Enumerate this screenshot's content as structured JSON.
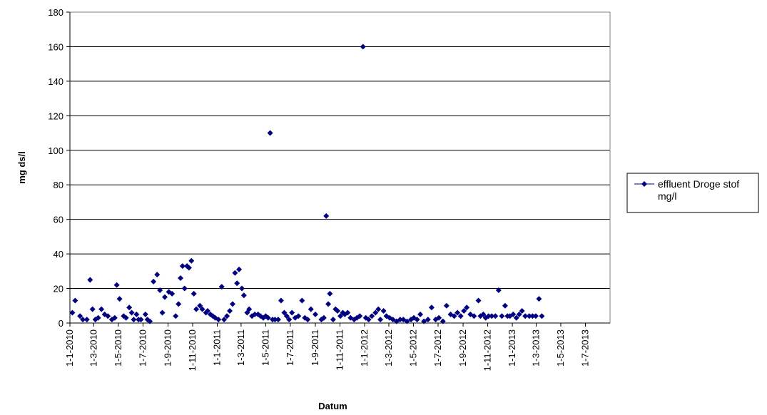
{
  "chart_data": {
    "type": "scatter",
    "xlabel": "Datum",
    "ylabel": "mg ds/l",
    "ylim": [
      0,
      180
    ],
    "y_ticks": [
      "0",
      "20",
      "40",
      "60",
      "80",
      "100",
      "120",
      "140",
      "160",
      "180"
    ],
    "xlim": [
      "2010-01-01",
      "2013-08-31"
    ],
    "x_ticks": [
      {
        "date": "2010-01-01",
        "label": "1-1-2010"
      },
      {
        "date": "2010-03-01",
        "label": "1-3-2010"
      },
      {
        "date": "2010-05-01",
        "label": "1-5-2010"
      },
      {
        "date": "2010-07-01",
        "label": "1-7-2010"
      },
      {
        "date": "2010-09-01",
        "label": "1-9-2010"
      },
      {
        "date": "2010-11-01",
        "label": "1-11-2010"
      },
      {
        "date": "2011-01-01",
        "label": "1-1-2011"
      },
      {
        "date": "2011-03-01",
        "label": "1-3-2011"
      },
      {
        "date": "2011-05-01",
        "label": "1-5-2011"
      },
      {
        "date": "2011-07-01",
        "label": "1-7-2011"
      },
      {
        "date": "2011-09-01",
        "label": "1-9-2011"
      },
      {
        "date": "2011-11-01",
        "label": "1-11-2011"
      },
      {
        "date": "2012-01-01",
        "label": "1-1-2012"
      },
      {
        "date": "2012-03-01",
        "label": "1-3-2012"
      },
      {
        "date": "2012-05-01",
        "label": "1-5-2012"
      },
      {
        "date": "2012-07-01",
        "label": "1-7-2012"
      },
      {
        "date": "2012-09-01",
        "label": "1-9-2012"
      },
      {
        "date": "2012-11-01",
        "label": "1-11-2012"
      },
      {
        "date": "2013-01-01",
        "label": "1-1-2013"
      },
      {
        "date": "2013-03-01",
        "label": "1-3-2013"
      },
      {
        "date": "2013-05-01",
        "label": "1-5-2013"
      },
      {
        "date": "2013-07-01",
        "label": "1-7-2013"
      }
    ],
    "grid": "horizontal",
    "legend_position": "right",
    "series": [
      {
        "name": "effluent Droge stof mg/l",
        "color": "#000080",
        "marker": "diamond",
        "points": [
          {
            "x": "2010-01-07",
            "y": 6
          },
          {
            "x": "2010-01-14",
            "y": 13
          },
          {
            "x": "2010-01-26",
            "y": 4
          },
          {
            "x": "2010-02-02",
            "y": 2
          },
          {
            "x": "2010-02-12",
            "y": 2
          },
          {
            "x": "2010-02-20",
            "y": 25
          },
          {
            "x": "2010-02-26",
            "y": 8
          },
          {
            "x": "2010-03-05",
            "y": 2
          },
          {
            "x": "2010-03-12",
            "y": 3
          },
          {
            "x": "2010-03-20",
            "y": 8
          },
          {
            "x": "2010-03-28",
            "y": 5
          },
          {
            "x": "2010-04-05",
            "y": 4
          },
          {
            "x": "2010-04-15",
            "y": 2
          },
          {
            "x": "2010-04-22",
            "y": 3
          },
          {
            "x": "2010-04-27",
            "y": 22
          },
          {
            "x": "2010-05-04",
            "y": 14
          },
          {
            "x": "2010-05-14",
            "y": 4
          },
          {
            "x": "2010-05-20",
            "y": 3
          },
          {
            "x": "2010-05-28",
            "y": 9
          },
          {
            "x": "2010-06-03",
            "y": 6
          },
          {
            "x": "2010-06-08",
            "y": 2
          },
          {
            "x": "2010-06-15",
            "y": 5
          },
          {
            "x": "2010-06-20",
            "y": 2
          },
          {
            "x": "2010-06-26",
            "y": 2
          },
          {
            "x": "2010-07-07",
            "y": 5
          },
          {
            "x": "2010-07-12",
            "y": 2
          },
          {
            "x": "2010-07-18",
            "y": 1
          },
          {
            "x": "2010-07-27",
            "y": 24
          },
          {
            "x": "2010-08-05",
            "y": 28
          },
          {
            "x": "2010-08-12",
            "y": 19
          },
          {
            "x": "2010-08-18",
            "y": 6
          },
          {
            "x": "2010-08-24",
            "y": 15
          },
          {
            "x": "2010-09-03",
            "y": 18
          },
          {
            "x": "2010-09-11",
            "y": 17
          },
          {
            "x": "2010-09-20",
            "y": 4
          },
          {
            "x": "2010-09-27",
            "y": 11
          },
          {
            "x": "2010-10-02",
            "y": 26
          },
          {
            "x": "2010-10-07",
            "y": 33
          },
          {
            "x": "2010-10-12",
            "y": 20
          },
          {
            "x": "2010-10-18",
            "y": 33
          },
          {
            "x": "2010-10-23",
            "y": 32
          },
          {
            "x": "2010-10-29",
            "y": 36
          },
          {
            "x": "2010-11-04",
            "y": 17
          },
          {
            "x": "2010-11-10",
            "y": 8
          },
          {
            "x": "2010-11-19",
            "y": 10
          },
          {
            "x": "2010-11-25",
            "y": 8
          },
          {
            "x": "2010-12-04",
            "y": 6
          },
          {
            "x": "2010-12-08",
            "y": 7
          },
          {
            "x": "2010-12-15",
            "y": 5
          },
          {
            "x": "2010-12-21",
            "y": 4
          },
          {
            "x": "2010-12-27",
            "y": 3
          },
          {
            "x": "2011-01-04",
            "y": 2
          },
          {
            "x": "2011-01-12",
            "y": 21
          },
          {
            "x": "2011-01-18",
            "y": 2
          },
          {
            "x": "2011-01-25",
            "y": 4
          },
          {
            "x": "2011-02-01",
            "y": 7
          },
          {
            "x": "2011-02-08",
            "y": 11
          },
          {
            "x": "2011-02-14",
            "y": 29
          },
          {
            "x": "2011-02-19",
            "y": 23
          },
          {
            "x": "2011-02-24",
            "y": 31
          },
          {
            "x": "2011-03-03",
            "y": 20
          },
          {
            "x": "2011-03-08",
            "y": 16
          },
          {
            "x": "2011-03-16",
            "y": 6
          },
          {
            "x": "2011-03-21",
            "y": 8
          },
          {
            "x": "2011-03-28",
            "y": 4
          },
          {
            "x": "2011-04-04",
            "y": 5
          },
          {
            "x": "2011-04-12",
            "y": 5
          },
          {
            "x": "2011-04-18",
            "y": 4
          },
          {
            "x": "2011-04-25",
            "y": 3
          },
          {
            "x": "2011-05-01",
            "y": 4
          },
          {
            "x": "2011-05-07",
            "y": 3
          },
          {
            "x": "2011-05-12",
            "y": 110
          },
          {
            "x": "2011-05-18",
            "y": 2
          },
          {
            "x": "2011-05-24",
            "y": 2
          },
          {
            "x": "2011-06-01",
            "y": 2
          },
          {
            "x": "2011-06-08",
            "y": 13
          },
          {
            "x": "2011-06-16",
            "y": 6
          },
          {
            "x": "2011-06-22",
            "y": 4
          },
          {
            "x": "2011-06-28",
            "y": 2
          },
          {
            "x": "2011-07-05",
            "y": 6
          },
          {
            "x": "2011-07-13",
            "y": 3
          },
          {
            "x": "2011-07-21",
            "y": 4
          },
          {
            "x": "2011-07-30",
            "y": 13
          },
          {
            "x": "2011-08-06",
            "y": 3
          },
          {
            "x": "2011-08-13",
            "y": 2
          },
          {
            "x": "2011-08-21",
            "y": 8
          },
          {
            "x": "2011-09-01",
            "y": 5
          },
          {
            "x": "2011-09-16",
            "y": 2
          },
          {
            "x": "2011-09-22",
            "y": 3
          },
          {
            "x": "2011-09-28",
            "y": 62
          },
          {
            "x": "2011-10-03",
            "y": 11
          },
          {
            "x": "2011-10-07",
            "y": 17
          },
          {
            "x": "2011-10-15",
            "y": 2
          },
          {
            "x": "2011-10-21",
            "y": 8
          },
          {
            "x": "2011-10-26",
            "y": 7
          },
          {
            "x": "2011-11-02",
            "y": 4
          },
          {
            "x": "2011-11-08",
            "y": 6
          },
          {
            "x": "2011-11-13",
            "y": 5
          },
          {
            "x": "2011-11-20",
            "y": 6
          },
          {
            "x": "2011-11-27",
            "y": 3
          },
          {
            "x": "2011-12-06",
            "y": 2
          },
          {
            "x": "2011-12-13",
            "y": 3
          },
          {
            "x": "2011-12-20",
            "y": 4
          },
          {
            "x": "2011-12-28",
            "y": 160
          },
          {
            "x": "2012-01-04",
            "y": 3
          },
          {
            "x": "2012-01-11",
            "y": 2
          },
          {
            "x": "2012-01-19",
            "y": 4
          },
          {
            "x": "2012-01-28",
            "y": 6
          },
          {
            "x": "2012-02-04",
            "y": 8
          },
          {
            "x": "2012-02-09",
            "y": 2
          },
          {
            "x": "2012-02-17",
            "y": 7
          },
          {
            "x": "2012-02-24",
            "y": 4
          },
          {
            "x": "2012-03-03",
            "y": 3
          },
          {
            "x": "2012-03-11",
            "y": 2
          },
          {
            "x": "2012-03-20",
            "y": 1
          },
          {
            "x": "2012-03-29",
            "y": 2
          },
          {
            "x": "2012-04-06",
            "y": 2
          },
          {
            "x": "2012-04-15",
            "y": 1
          },
          {
            "x": "2012-04-25",
            "y": 2
          },
          {
            "x": "2012-05-02",
            "y": 3
          },
          {
            "x": "2012-05-10",
            "y": 2
          },
          {
            "x": "2012-05-18",
            "y": 5
          },
          {
            "x": "2012-05-27",
            "y": 1
          },
          {
            "x": "2012-06-06",
            "y": 2
          },
          {
            "x": "2012-06-15",
            "y": 9
          },
          {
            "x": "2012-06-25",
            "y": 2
          },
          {
            "x": "2012-07-03",
            "y": 3
          },
          {
            "x": "2012-07-13",
            "y": 1
          },
          {
            "x": "2012-07-22",
            "y": 10
          },
          {
            "x": "2012-08-01",
            "y": 5
          },
          {
            "x": "2012-08-10",
            "y": 4
          },
          {
            "x": "2012-08-18",
            "y": 6
          },
          {
            "x": "2012-08-26",
            "y": 4
          },
          {
            "x": "2012-09-03",
            "y": 7
          },
          {
            "x": "2012-09-10",
            "y": 9
          },
          {
            "x": "2012-09-19",
            "y": 5
          },
          {
            "x": "2012-09-28",
            "y": 4
          },
          {
            "x": "2012-10-09",
            "y": 13
          },
          {
            "x": "2012-10-14",
            "y": 4
          },
          {
            "x": "2012-10-21",
            "y": 5
          },
          {
            "x": "2012-10-27",
            "y": 3
          },
          {
            "x": "2012-11-03",
            "y": 4
          },
          {
            "x": "2012-11-11",
            "y": 4
          },
          {
            "x": "2012-11-20",
            "y": 4
          },
          {
            "x": "2012-11-28",
            "y": 19
          },
          {
            "x": "2012-12-06",
            "y": 4
          },
          {
            "x": "2012-12-14",
            "y": 10
          },
          {
            "x": "2012-12-20",
            "y": 4
          },
          {
            "x": "2012-12-26",
            "y": 4
          },
          {
            "x": "2013-01-03",
            "y": 5
          },
          {
            "x": "2013-01-11",
            "y": 3
          },
          {
            "x": "2013-01-18",
            "y": 5
          },
          {
            "x": "2013-01-25",
            "y": 7
          },
          {
            "x": "2013-02-02",
            "y": 4
          },
          {
            "x": "2013-02-12",
            "y": 4
          },
          {
            "x": "2013-02-20",
            "y": 4
          },
          {
            "x": "2013-02-28",
            "y": 4
          },
          {
            "x": "2013-03-08",
            "y": 14
          },
          {
            "x": "2013-03-15",
            "y": 4
          }
        ]
      }
    ]
  }
}
